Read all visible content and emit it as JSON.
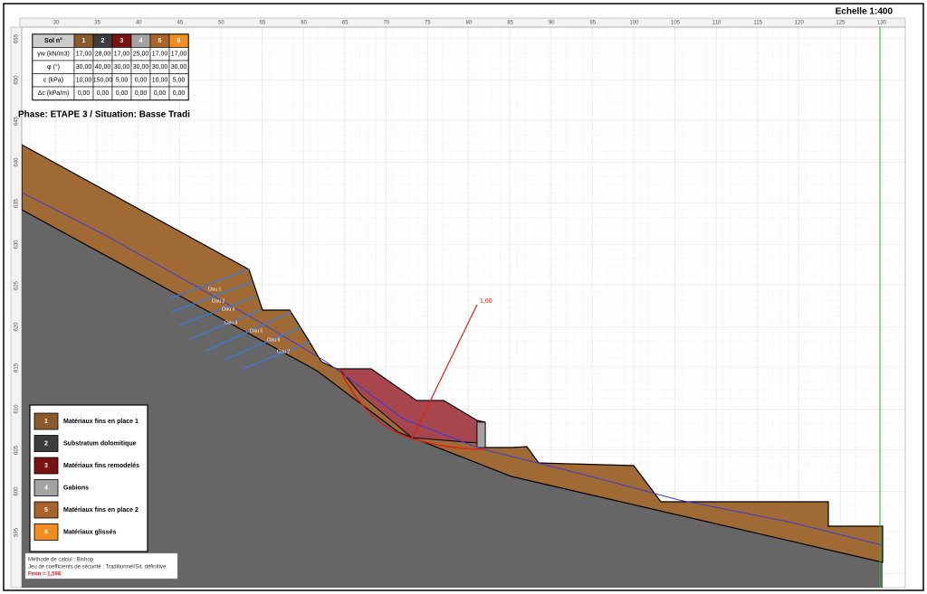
{
  "scale": "Echelle 1:400",
  "x_ticks": [
    30,
    35,
    40,
    45,
    50,
    55,
    60,
    65,
    70,
    75,
    80,
    85,
    90,
    95,
    100,
    105,
    110,
    115,
    120,
    125,
    130
  ],
  "y_ticks": [
    595,
    600,
    605,
    610,
    615,
    620,
    625,
    630,
    635,
    640,
    645,
    650,
    655
  ],
  "soil_table": {
    "header": "Sol n°",
    "soils": [
      {
        "number": "1",
        "color": "#8b5a2b"
      },
      {
        "number": "2",
        "color": "#3c3c3c"
      },
      {
        "number": "3",
        "color": "#7a1212"
      },
      {
        "number": "4",
        "color": "#a3a3a3"
      },
      {
        "number": "5",
        "color": "#a8642a"
      },
      {
        "number": "6",
        "color": "#f28c1c"
      }
    ],
    "rows": [
      {
        "label": "γw (kN/m3)",
        "values": [
          "17,00",
          "28,00",
          "17,00",
          "25,00",
          "17,00",
          "17,00"
        ]
      },
      {
        "label": "φ (°)",
        "values": [
          "30,00",
          "40,00",
          "30,00",
          "30,00",
          "30,00",
          "30,00"
        ]
      },
      {
        "label": "c (kPa)",
        "values": [
          "10,00",
          "150,00",
          "5,00",
          "0,00",
          "10,00",
          "5,00"
        ]
      },
      {
        "label": "Δc (kPa/m)",
        "values": [
          "0,00",
          "0,00",
          "0,00",
          "0,00",
          "0,00",
          "0,00"
        ]
      }
    ]
  },
  "phase": "Phase: ETAPE 3 / Situation: Basse Tradi",
  "legend": [
    {
      "number": "1",
      "label": "Matériaux fins en place 1"
    },
    {
      "number": "2",
      "label": "Substratum dolomitique"
    },
    {
      "number": "3",
      "label": "Matériaux fins remodelés"
    },
    {
      "number": "4",
      "label": "Gabions"
    },
    {
      "number": "5",
      "label": "Matériaux fins en place 2"
    },
    {
      "number": "6",
      "label": "Matériaux glissés"
    }
  ],
  "nails": [
    "Clou 1",
    "Clou 2",
    "Clou 3",
    "Clou 4",
    "Clou 5",
    "Clou 6",
    "Clou 7"
  ],
  "critical_factor": "1,60",
  "notes": {
    "method": "Méthode de calcul : Bishop",
    "coefficients": "Jeu de coefficients de sécurité : Traditionnel/Sit. définitive",
    "fmin": "Fmin = 1,596"
  }
}
